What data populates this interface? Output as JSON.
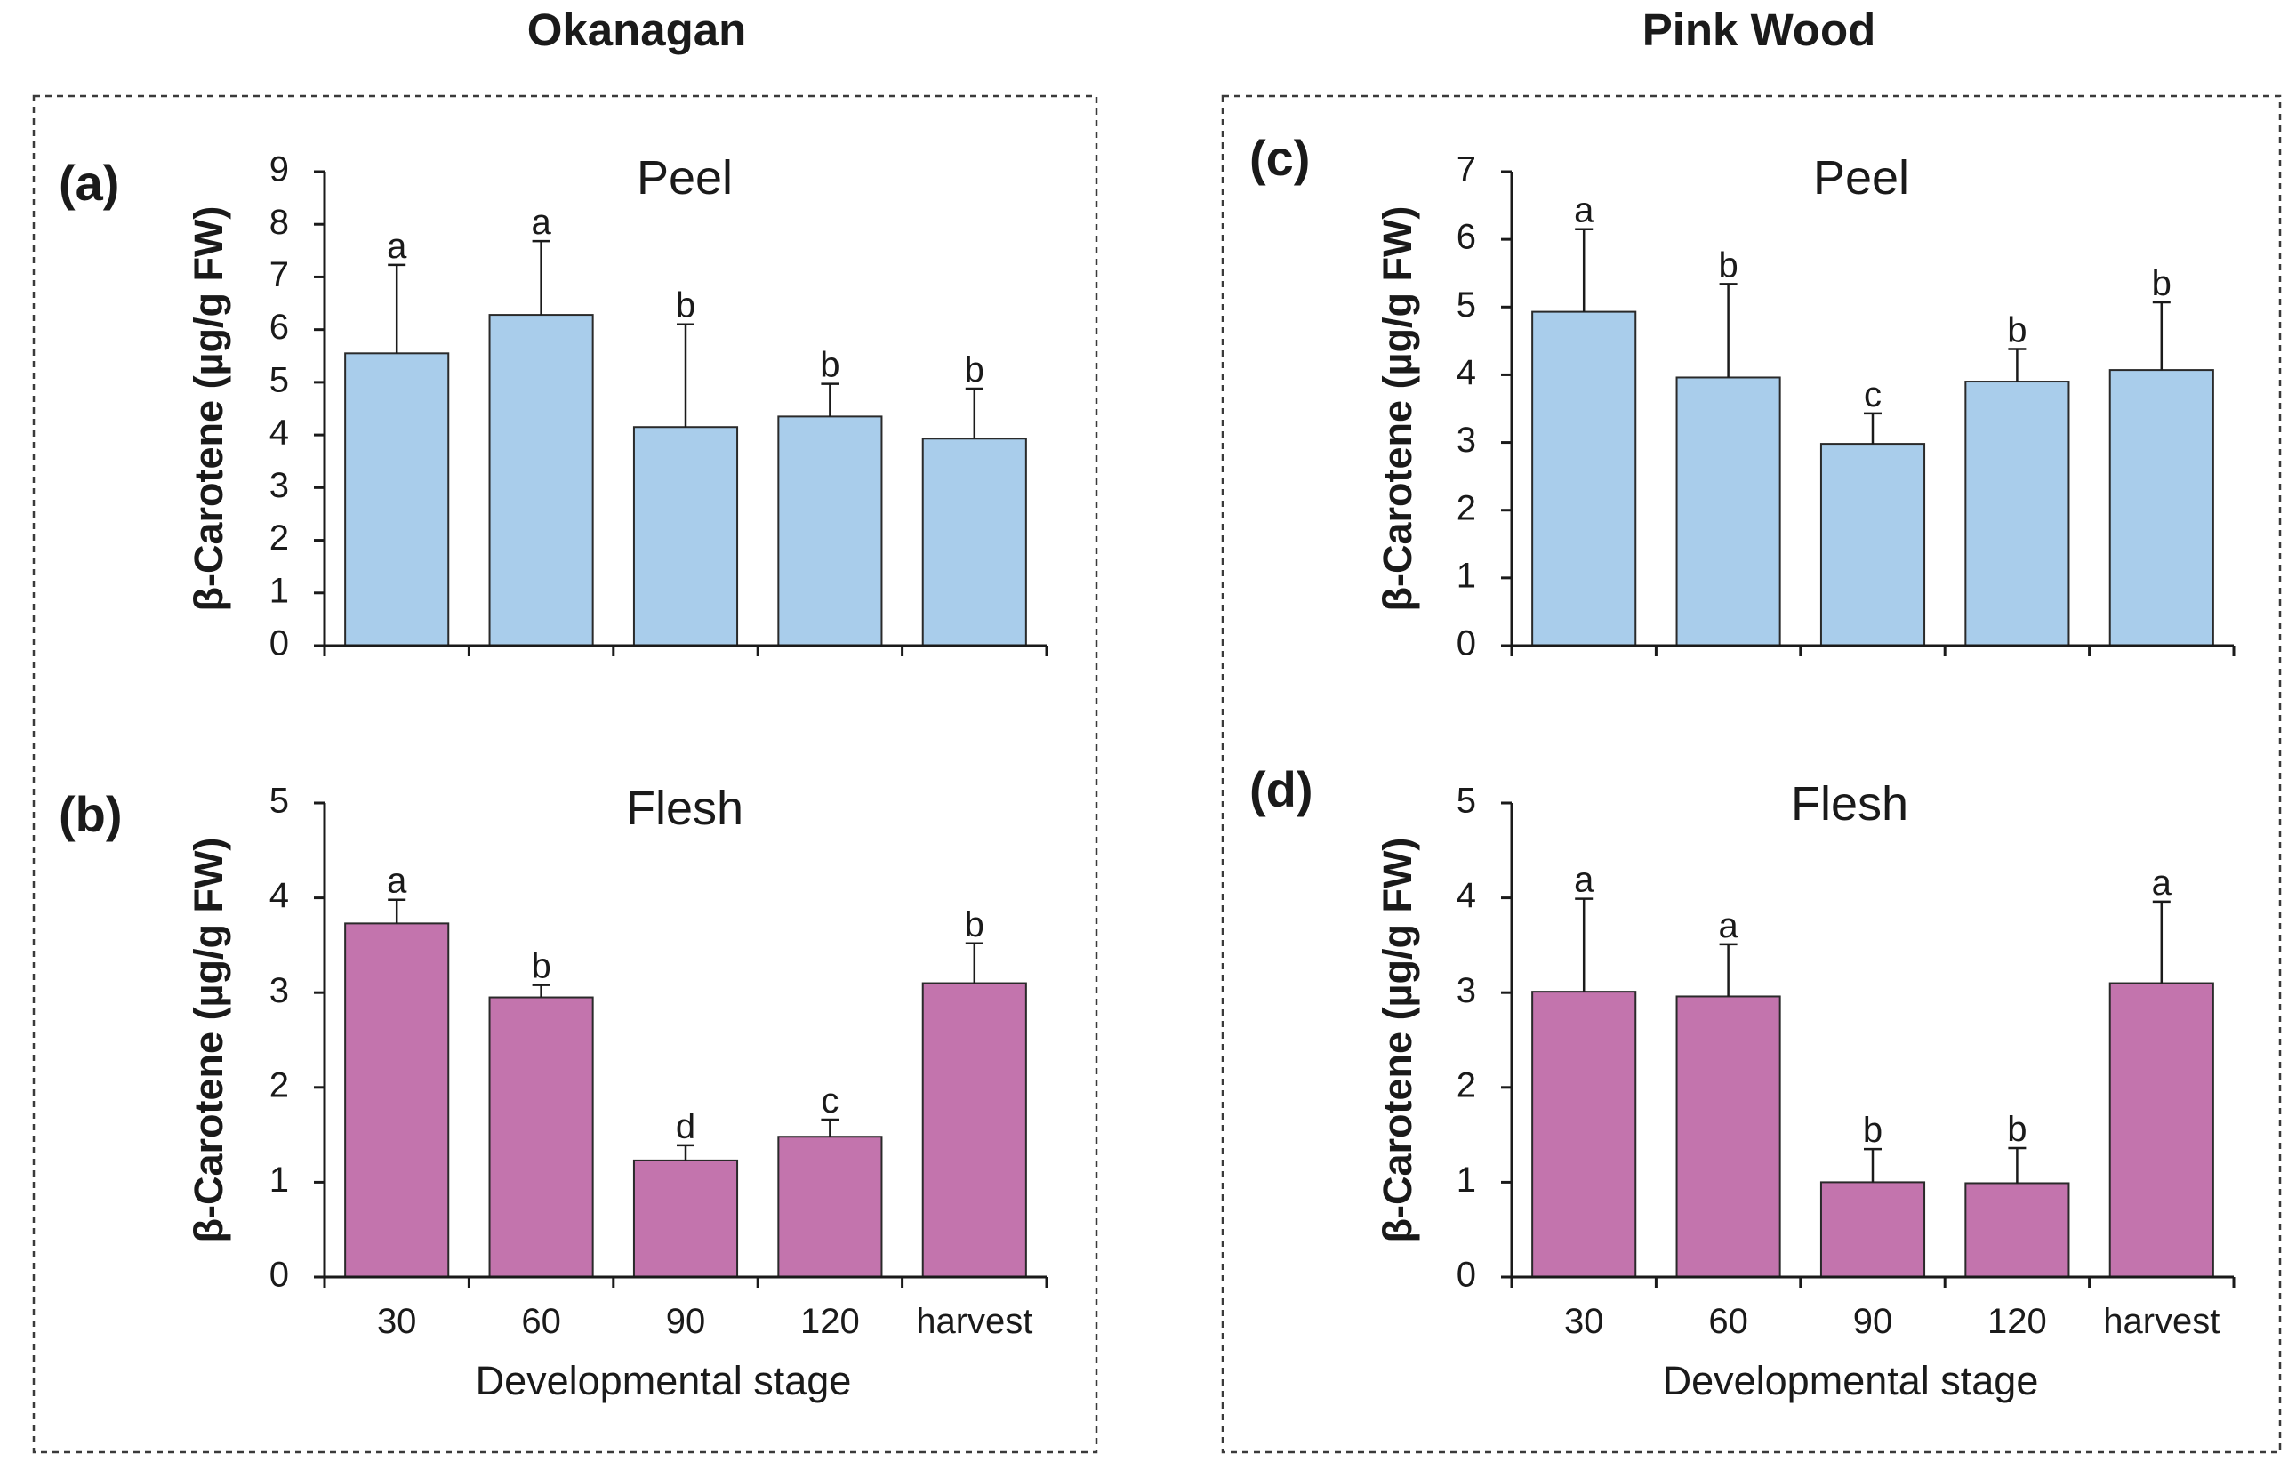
{
  "groups": [
    {
      "title": "Okanagan"
    },
    {
      "title": "Pink Wood"
    }
  ],
  "colors": {
    "peel": "#a9cdeb",
    "flesh": "#c374ad"
  },
  "chart_data": [
    {
      "panel": "(a)",
      "group": "Okanagan",
      "type": "bar",
      "subtitle": "Peel",
      "categories": [
        "30",
        "60",
        "90",
        "120",
        "harvest"
      ],
      "values": [
        5.55,
        6.28,
        4.15,
        4.35,
        3.93
      ],
      "errors": [
        1.68,
        1.4,
        1.95,
        0.62,
        0.95
      ],
      "letters": [
        "a",
        "a",
        "b",
        "b",
        "b"
      ],
      "ylabel": "β-Carotene (µg/g FW)",
      "xlabel": "",
      "ylim": [
        0,
        9
      ],
      "yticks": [
        "0",
        "1",
        "2",
        "3",
        "4",
        "5",
        "6",
        "7",
        "8",
        "9"
      ],
      "color": "#a9cdeb",
      "show_categories": false
    },
    {
      "panel": "(b)",
      "group": "Okanagan",
      "type": "bar",
      "subtitle": "Flesh",
      "categories": [
        "30",
        "60",
        "90",
        "120",
        "harvest"
      ],
      "values": [
        3.73,
        2.95,
        1.23,
        1.48,
        3.1
      ],
      "errors": [
        0.25,
        0.13,
        0.16,
        0.18,
        0.42
      ],
      "letters": [
        "a",
        "b",
        "d",
        "c",
        "b"
      ],
      "ylabel": "β-Carotene (µg/g FW)",
      "xlabel": "Developmental stage",
      "ylim": [
        0,
        5
      ],
      "yticks": [
        "0",
        "1",
        "2",
        "3",
        "4",
        "5"
      ],
      "color": "#c374ad",
      "show_categories": true
    },
    {
      "panel": "(c)",
      "group": "Pink Wood",
      "type": "bar",
      "subtitle": "Peel",
      "categories": [
        "30",
        "60",
        "90",
        "120",
        "harvest"
      ],
      "values": [
        4.93,
        3.96,
        2.98,
        3.9,
        4.07
      ],
      "errors": [
        1.22,
        1.38,
        0.45,
        0.48,
        1.0
      ],
      "letters": [
        "a",
        "b",
        "c",
        "b",
        "b"
      ],
      "ylabel": "β-Carotene (µg/g FW)",
      "xlabel": "",
      "ylim": [
        0,
        7
      ],
      "yticks": [
        "0",
        "1",
        "2",
        "3",
        "4",
        "5",
        "6",
        "7"
      ],
      "color": "#a9cdeb",
      "show_categories": false
    },
    {
      "panel": "(d)",
      "group": "Pink Wood",
      "type": "bar",
      "subtitle": "Flesh",
      "categories": [
        "30",
        "60",
        "90",
        "120",
        "harvest"
      ],
      "values": [
        3.01,
        2.96,
        1.0,
        0.99,
        3.1
      ],
      "errors": [
        0.98,
        0.55,
        0.35,
        0.37,
        0.86
      ],
      "letters": [
        "a",
        "a",
        "b",
        "b",
        "a"
      ],
      "ylabel": "β-Carotene (µg/g FW)",
      "xlabel": "Developmental stage",
      "ylim": [
        0,
        5
      ],
      "yticks": [
        "0",
        "1",
        "2",
        "3",
        "4",
        "5"
      ],
      "color": "#c374ad",
      "show_categories": true
    }
  ]
}
